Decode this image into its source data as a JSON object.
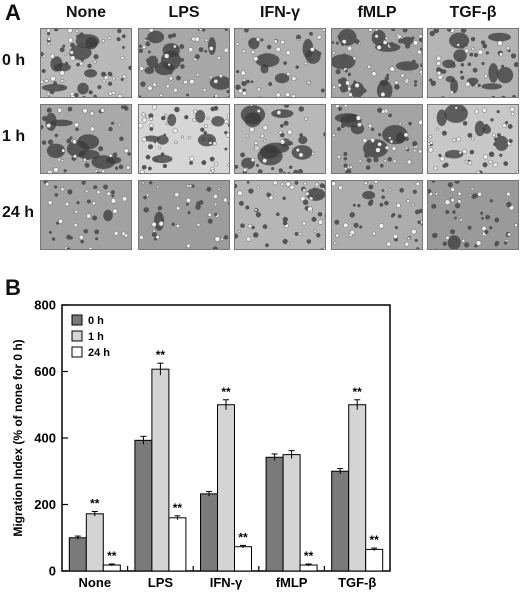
{
  "panel_a": {
    "letter": "A",
    "columns": [
      "None",
      "LPS",
      "IFN-γ",
      "fMLP",
      "TGF-β"
    ],
    "rows": [
      "0 h",
      "1 h",
      "24 h"
    ]
  },
  "panel_b": {
    "letter": "B"
  },
  "chart_data": {
    "type": "bar",
    "categories": [
      "None",
      "LPS",
      "IFN-γ",
      "fMLP",
      "TGF-β"
    ],
    "series": [
      {
        "name": "0 h",
        "values": [
          100,
          393,
          232,
          342,
          300
        ],
        "errors": [
          5,
          12,
          7,
          10,
          8
        ],
        "color": "#7a7a7a"
      },
      {
        "name": "1 h",
        "values": [
          172,
          607,
          500,
          350,
          500
        ],
        "errors": [
          7,
          18,
          15,
          12,
          15
        ],
        "color": "#d4d4d4"
      },
      {
        "name": "24 h",
        "values": [
          18,
          160,
          73,
          18,
          65
        ],
        "errors": [
          3,
          6,
          4,
          3,
          4
        ],
        "color": "#ffffff"
      }
    ],
    "significance": [
      [
        "",
        "**",
        "**"
      ],
      [
        "",
        "**",
        "**"
      ],
      [
        "",
        "**",
        "**"
      ],
      [
        "",
        "",
        "**"
      ],
      [
        "",
        "**",
        "**"
      ]
    ],
    "significance_label": "**",
    "ylabel": "Migration Index (% of none for 0 h)",
    "ylim": [
      0,
      800
    ],
    "yticks": [
      0,
      200,
      400,
      600,
      800
    ],
    "legend_position": "top-left"
  }
}
